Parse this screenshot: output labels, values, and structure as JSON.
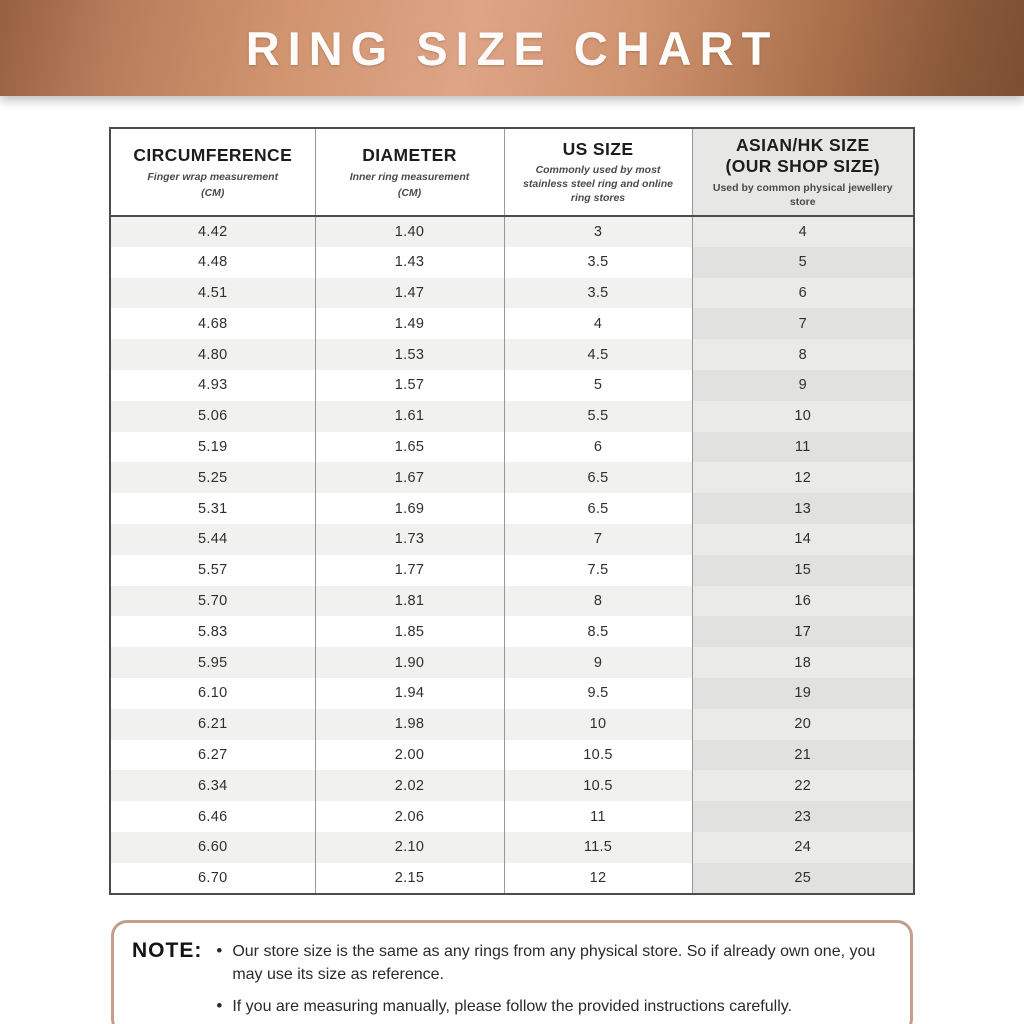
{
  "banner": {
    "title": "RING SIZE CHART"
  },
  "table": {
    "headers": [
      {
        "title": "CIRCUMFERENCE",
        "subtitle": "Finger wrap measurement",
        "unit": "(CM)"
      },
      {
        "title": "DIAMETER",
        "subtitle": "Inner ring measurement",
        "unit": "(CM)"
      },
      {
        "title": "US SIZE",
        "subtitle": "Commonly used by most stainless steel ring and online ring stores",
        "unit": ""
      },
      {
        "title": "ASIAN/HK SIZE",
        "title2": "(OUR SHOP SIZE)",
        "subtitle": "Used by common physical jewellery store",
        "unit": ""
      }
    ]
  },
  "chart_data": {
    "type": "table",
    "title": "RING SIZE CHART",
    "columns": [
      "Circumference (CM)",
      "Diameter (CM)",
      "US Size",
      "Asian/HK Size (Our Shop Size)"
    ],
    "rows": [
      [
        "4.42",
        "1.40",
        "3",
        "4"
      ],
      [
        "4.48",
        "1.43",
        "3.5",
        "5"
      ],
      [
        "4.51",
        "1.47",
        "3.5",
        "6"
      ],
      [
        "4.68",
        "1.49",
        "4",
        "7"
      ],
      [
        "4.80",
        "1.53",
        "4.5",
        "8"
      ],
      [
        "4.93",
        "1.57",
        "5",
        "9"
      ],
      [
        "5.06",
        "1.61",
        "5.5",
        "10"
      ],
      [
        "5.19",
        "1.65",
        "6",
        "11"
      ],
      [
        "5.25",
        "1.67",
        "6.5",
        "12"
      ],
      [
        "5.31",
        "1.69",
        "6.5",
        "13"
      ],
      [
        "5.44",
        "1.73",
        "7",
        "14"
      ],
      [
        "5.57",
        "1.77",
        "7.5",
        "15"
      ],
      [
        "5.70",
        "1.81",
        "8",
        "16"
      ],
      [
        "5.83",
        "1.85",
        "8.5",
        "17"
      ],
      [
        "5.95",
        "1.90",
        "9",
        "18"
      ],
      [
        "6.10",
        "1.94",
        "9.5",
        "19"
      ],
      [
        "6.21",
        "1.98",
        "10",
        "20"
      ],
      [
        "6.27",
        "2.00",
        "10.5",
        "21"
      ],
      [
        "6.34",
        "2.02",
        "10.5",
        "22"
      ],
      [
        "6.46",
        "2.06",
        "11",
        "23"
      ],
      [
        "6.60",
        "2.10",
        "11.5",
        "24"
      ],
      [
        "6.70",
        "2.15",
        "12",
        "25"
      ]
    ]
  },
  "note": {
    "label": "NOTE:",
    "bullets": [
      "Our store size is the same as any rings from any physical store. So if already own one, you may use its size as reference.",
      "If you are measuring manually, please follow the provided instructions carefully."
    ]
  },
  "colors": {
    "banner_copper_light": "#dda486",
    "banner_copper_dark": "#7c4e32",
    "stripe_gray": "#f1f1f0",
    "asian_column_gray": "#e1e1df",
    "note_border": "#c49e8b"
  }
}
